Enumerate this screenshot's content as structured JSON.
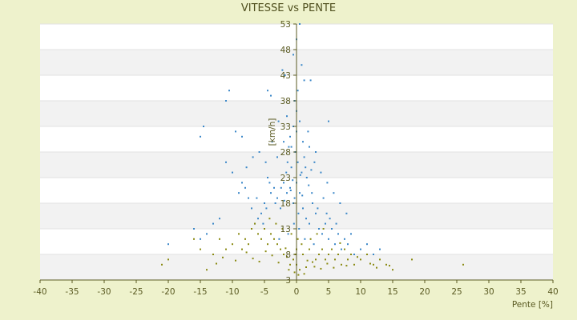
{
  "chart_data": {
    "type": "scatter",
    "title": "VITESSE vs PENTE",
    "xlabel": "Pente [%]",
    "ylabel": "[km/h]",
    "xlim": [
      -40,
      40
    ],
    "ylim": [
      3,
      53
    ],
    "x_ticks": [
      -40,
      -35,
      -30,
      -25,
      -20,
      -15,
      -10,
      -5,
      0,
      5,
      10,
      15,
      20,
      25,
      30,
      35,
      40
    ],
    "y_ticks": [
      3,
      8,
      13,
      18,
      23,
      28,
      33,
      38,
      43,
      48,
      53
    ],
    "grid": true,
    "legend": "none",
    "series": [
      {
        "color": "#3a87c8",
        "points": [
          [
            0,
            22
          ],
          [
            0.5,
            20
          ],
          [
            -0.5,
            18
          ],
          [
            1,
            17
          ],
          [
            -1,
            21
          ],
          [
            0.3,
            16
          ],
          [
            -0.3,
            19
          ],
          [
            1.5,
            15
          ],
          [
            -1.5,
            20
          ],
          [
            2,
            14
          ],
          [
            -2,
            22
          ],
          [
            0.8,
            24
          ],
          [
            -0.8,
            25
          ],
          [
            2.5,
            18
          ],
          [
            -2.5,
            17
          ],
          [
            3,
            16
          ],
          [
            -3,
            19
          ],
          [
            0.2,
            26
          ],
          [
            -0.2,
            28
          ],
          [
            1.2,
            27
          ],
          [
            -1.2,
            29
          ],
          [
            3.5,
            13
          ],
          [
            -3.5,
            21
          ],
          [
            4,
            12
          ],
          [
            -4,
            20
          ],
          [
            4.5,
            14
          ],
          [
            -4.5,
            23
          ],
          [
            5,
            11
          ],
          [
            -5,
            18
          ],
          [
            5.5,
            13
          ],
          [
            -5.5,
            16
          ],
          [
            6,
            10
          ],
          [
            -6,
            15
          ],
          [
            6.5,
            12
          ],
          [
            -6.5,
            14
          ],
          [
            7,
            9
          ],
          [
            -7,
            17
          ],
          [
            7.5,
            11
          ],
          [
            -7.5,
            19
          ],
          [
            8,
            10
          ],
          [
            -8,
            21
          ],
          [
            8.5,
            12
          ],
          [
            -8.5,
            22
          ],
          [
            9,
            8
          ],
          [
            -9,
            20
          ],
          [
            10,
            9
          ],
          [
            -10,
            24
          ],
          [
            11,
            10
          ],
          [
            -11,
            26
          ],
          [
            12,
            8
          ],
          [
            -12,
            15
          ],
          [
            13,
            9
          ],
          [
            -13,
            14
          ],
          [
            -14,
            12
          ],
          [
            -15,
            11
          ],
          [
            -16,
            13
          ],
          [
            -20,
            10
          ],
          [
            0,
            32
          ],
          [
            0.5,
            34
          ],
          [
            -0.5,
            33
          ],
          [
            1,
            30
          ],
          [
            -1,
            31
          ],
          [
            2,
            29
          ],
          [
            -2,
            30
          ],
          [
            3,
            28
          ],
          [
            -3,
            27
          ],
          [
            0,
            36
          ],
          [
            -0.3,
            38
          ],
          [
            0.2,
            40
          ],
          [
            -1.5,
            35
          ],
          [
            1.8,
            32
          ],
          [
            -2.8,
            34
          ],
          [
            2.8,
            26
          ],
          [
            -3.8,
            30
          ],
          [
            3.8,
            24
          ],
          [
            4.8,
            22
          ],
          [
            -4.8,
            26
          ],
          [
            5.8,
            20
          ],
          [
            -5.8,
            28
          ],
          [
            6.8,
            18
          ],
          [
            -6.8,
            27
          ],
          [
            7.8,
            16
          ],
          [
            -7.8,
            25
          ],
          [
            -9.5,
            32
          ],
          [
            -10.5,
            40
          ],
          [
            -11,
            38
          ],
          [
            -8.5,
            31
          ],
          [
            -14.5,
            33
          ],
          [
            -15,
            31
          ],
          [
            5,
            34
          ],
          [
            1.2,
            42
          ],
          [
            -1.8,
            43
          ],
          [
            0,
            50
          ],
          [
            -0.5,
            47
          ],
          [
            0.8,
            45
          ],
          [
            -2.2,
            44
          ],
          [
            2.2,
            42
          ],
          [
            -4.5,
            40
          ],
          [
            -4,
            39
          ],
          [
            0.5,
            53
          ],
          [
            -0.8,
            29
          ],
          [
            1.6,
            23
          ],
          [
            -1.6,
            24
          ],
          [
            2.4,
            20
          ],
          [
            -2.4,
            21
          ],
          [
            0.4,
            13
          ],
          [
            -0.4,
            14
          ],
          [
            1.3,
            11
          ],
          [
            -1.3,
            12
          ],
          [
            2.7,
            10
          ],
          [
            -2.7,
            11
          ],
          [
            3.3,
            17
          ],
          [
            -3.3,
            18
          ],
          [
            4.2,
            19
          ],
          [
            -4.2,
            22
          ],
          [
            4.7,
            16
          ],
          [
            -4.7,
            17
          ],
          [
            5.2,
            15
          ],
          [
            -5.2,
            14
          ],
          [
            6.2,
            14
          ],
          [
            -6.2,
            19
          ],
          [
            0.9,
            19.5
          ],
          [
            -0.9,
            20.5
          ],
          [
            1.9,
            21.5
          ],
          [
            -1.9,
            18.5
          ],
          [
            0.6,
            23.5
          ],
          [
            -0.6,
            22.5
          ],
          [
            1.4,
            25
          ],
          [
            -1.4,
            26
          ],
          [
            2.3,
            24.5
          ]
        ]
      },
      {
        "color": "#8a8a12",
        "points": [
          [
            0,
            6
          ],
          [
            0.5,
            5
          ],
          [
            -0.5,
            7
          ],
          [
            1,
            8
          ],
          [
            -1,
            6
          ],
          [
            1.5,
            5.5
          ],
          [
            -1.5,
            7.5
          ],
          [
            2,
            9
          ],
          [
            -2,
            8
          ],
          [
            2.5,
            6.5
          ],
          [
            -2.5,
            9
          ],
          [
            3,
            7
          ],
          [
            -3,
            10
          ],
          [
            3.5,
            8
          ],
          [
            -3.5,
            11
          ],
          [
            4,
            9
          ],
          [
            -4,
            12
          ],
          [
            4.5,
            7
          ],
          [
            -4.5,
            10
          ],
          [
            5,
            8
          ],
          [
            -5,
            13
          ],
          [
            5.5,
            9
          ],
          [
            -5.5,
            11
          ],
          [
            6,
            7
          ],
          [
            -6,
            12
          ],
          [
            6.5,
            8
          ],
          [
            -6.5,
            14
          ],
          [
            7,
            6
          ],
          [
            -7,
            13
          ],
          [
            7.5,
            9
          ],
          [
            -7.5,
            10
          ],
          [
            8,
            7
          ],
          [
            -8,
            11
          ],
          [
            8.5,
            8
          ],
          [
            -8.5,
            9
          ],
          [
            9,
            6
          ],
          [
            -9,
            12
          ],
          [
            10,
            7
          ],
          [
            -10,
            10
          ],
          [
            11,
            8
          ],
          [
            -11,
            9
          ],
          [
            12,
            6
          ],
          [
            -12,
            11
          ],
          [
            13,
            7
          ],
          [
            -13,
            8
          ],
          [
            14,
            6
          ],
          [
            -14,
            5
          ],
          [
            15,
            5
          ],
          [
            -15,
            9
          ],
          [
            18,
            7
          ],
          [
            26,
            6
          ],
          [
            -21,
            6
          ],
          [
            -20,
            7
          ],
          [
            -16,
            11
          ],
          [
            0.3,
            4
          ],
          [
            -0.3,
            4.5
          ],
          [
            1.2,
            4.2
          ],
          [
            -1.2,
            5
          ],
          [
            0.8,
            10
          ],
          [
            -0.8,
            12
          ],
          [
            2.2,
            11
          ],
          [
            -2.2,
            13
          ],
          [
            3.2,
            12
          ],
          [
            -3.2,
            14
          ],
          [
            4.2,
            13
          ],
          [
            -4.2,
            15
          ],
          [
            0,
            9
          ],
          [
            0.2,
            11
          ],
          [
            -0.2,
            8
          ],
          [
            1.7,
            6.8
          ],
          [
            -1.7,
            9.2
          ],
          [
            2.8,
            5.6
          ],
          [
            -2.8,
            6.4
          ],
          [
            3.8,
            5.2
          ],
          [
            -3.8,
            7.8
          ],
          [
            4.8,
            6.2
          ],
          [
            -4.8,
            8.6
          ],
          [
            5.8,
            5.4
          ],
          [
            -5.8,
            6.6
          ],
          [
            6.8,
            10.2
          ],
          [
            -6.8,
            7.2
          ],
          [
            7.8,
            5.8
          ],
          [
            -7.8,
            8.4
          ],
          [
            9.5,
            7.5
          ],
          [
            -9.5,
            6.8
          ],
          [
            11.5,
            6.2
          ],
          [
            -11.5,
            7.4
          ],
          [
            12.5,
            5.4
          ],
          [
            -12.5,
            6.2
          ],
          [
            14.5,
            5.8
          ]
        ]
      }
    ]
  }
}
